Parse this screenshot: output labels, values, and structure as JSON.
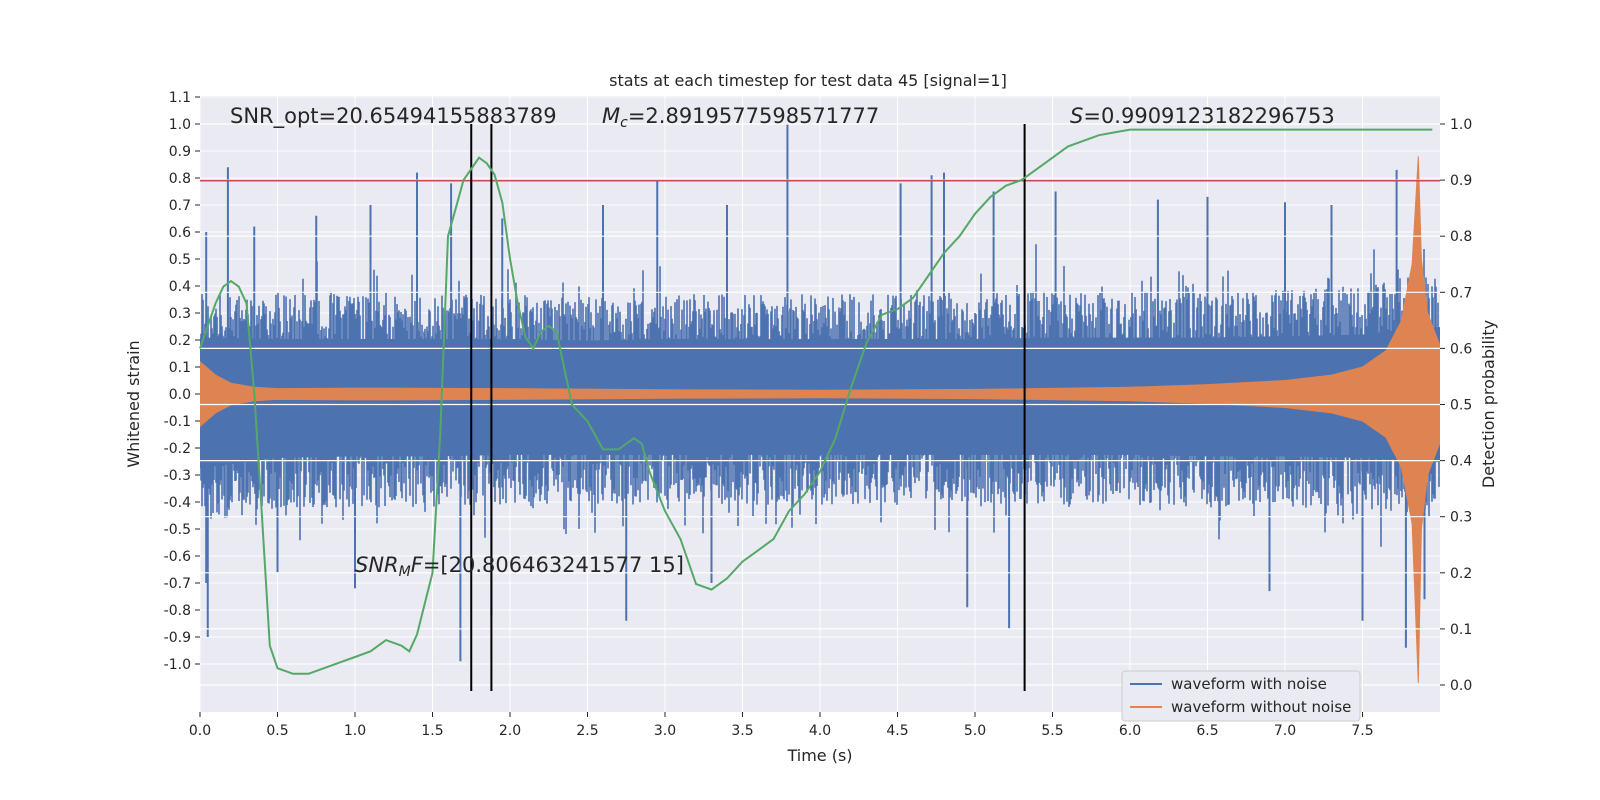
{
  "chart_data": {
    "type": "line",
    "title": "stats at each timestep for test data 45 [signal=1]",
    "xlabel": "Time (s)",
    "ylabel_left": "Whitened strain",
    "ylabel_right": "Detection probability",
    "xlim": [
      0.0,
      8.0
    ],
    "ylim_left": [
      -1.2,
      1.1
    ],
    "ylim_right": [
      0.0,
      1.0
    ],
    "grid": true,
    "x_ticks": [
      "0.0",
      "0.5",
      "1.0",
      "1.5",
      "2.0",
      "2.5",
      "3.0",
      "3.5",
      "4.0",
      "4.5",
      "5.0",
      "5.5",
      "6.0",
      "6.5",
      "7.0",
      "7.5"
    ],
    "y_left_ticks": [
      "1.1",
      "1.0",
      "0.9",
      "0.8",
      "0.7",
      "0.6",
      "0.5",
      "0.4",
      "0.3",
      "0.2",
      "0.1",
      "0.0",
      "-0.1",
      "-0.2",
      "-0.3",
      "-0.4",
      "-0.5",
      "-0.6",
      "-0.7",
      "-0.8",
      "-0.9",
      "-1.0"
    ],
    "y_right_ticks": [
      "1.0",
      "0.9",
      "0.8",
      "0.7",
      "0.6",
      "0.5",
      "0.4",
      "0.3",
      "0.2",
      "0.1",
      "0.0"
    ],
    "annotations": {
      "snr_opt": "SNR_opt=20.65494155883789",
      "mc_symbol": "M",
      "mc_sub": "c",
      "mc_value": "=2.8919577598571777",
      "s_symbol": "S",
      "s_value": "=0.9909123182296753",
      "snr_mf_symbol": "SNR",
      "snr_mf_sub": "M",
      "snr_mf_symbol2": "F",
      "snr_mf_value": "=[20.806463241577 15]"
    },
    "threshold_strain": 0.79,
    "vertical_lines_x": [
      1.75,
      1.88,
      5.32
    ],
    "vertical_lines_range_strain": [
      -1.1,
      1.0
    ],
    "series": [
      {
        "name": "waveform with noise",
        "color": "#4c72b0",
        "envelope_x": [
          0.0,
          0.5,
          1.0,
          1.5,
          2.0,
          2.5,
          3.0,
          3.5,
          4.0,
          4.5,
          5.0,
          5.5,
          6.0,
          6.5,
          7.0,
          7.5,
          7.8,
          8.0
        ],
        "envelope_upper": [
          0.38,
          0.37,
          0.37,
          0.37,
          0.37,
          0.36,
          0.37,
          0.37,
          0.37,
          0.37,
          0.37,
          0.38,
          0.38,
          0.38,
          0.39,
          0.4,
          0.44,
          0.45
        ],
        "envelope_lower": [
          -0.5,
          -0.43,
          -0.42,
          -0.42,
          -0.41,
          -0.41,
          -0.41,
          -0.41,
          -0.41,
          -0.41,
          -0.41,
          -0.41,
          -0.41,
          -0.42,
          -0.42,
          -0.43,
          -0.45,
          -0.46
        ],
        "spikes_up": [
          [
            0.04,
            0.6
          ],
          [
            0.18,
            0.84
          ],
          [
            0.35,
            0.62
          ],
          [
            0.75,
            0.66
          ],
          [
            1.1,
            0.7
          ],
          [
            1.4,
            0.82
          ],
          [
            1.62,
            0.78
          ],
          [
            1.75,
            0.8
          ],
          [
            1.95,
            0.65
          ],
          [
            2.6,
            0.7
          ],
          [
            2.95,
            0.79
          ],
          [
            3.4,
            0.7
          ],
          [
            3.79,
            1.0
          ],
          [
            4.52,
            0.78
          ],
          [
            4.72,
            0.81
          ],
          [
            4.8,
            0.82
          ],
          [
            5.12,
            0.75
          ],
          [
            5.52,
            0.75
          ],
          [
            6.18,
            0.72
          ],
          [
            6.5,
            0.73
          ],
          [
            7.0,
            0.71
          ],
          [
            7.3,
            0.7
          ],
          [
            7.72,
            0.83
          ]
        ],
        "spikes_down": [
          [
            0.04,
            -0.7
          ],
          [
            0.05,
            -0.9
          ],
          [
            0.5,
            -0.66
          ],
          [
            1.0,
            -0.72
          ],
          [
            1.68,
            -0.99
          ],
          [
            1.88,
            -0.82
          ],
          [
            2.75,
            -0.84
          ],
          [
            3.3,
            -0.7
          ],
          [
            4.95,
            -0.79
          ],
          [
            5.22,
            -0.87
          ],
          [
            6.9,
            -0.73
          ],
          [
            7.5,
            -0.84
          ],
          [
            7.78,
            -0.94
          ],
          [
            7.9,
            -0.76
          ]
        ]
      },
      {
        "name": "waveform without noise",
        "color": "#dd8452",
        "envelope_x": [
          0.0,
          0.1,
          0.2,
          0.35,
          0.5,
          1.0,
          2.0,
          3.0,
          4.0,
          5.0,
          6.0,
          6.5,
          7.0,
          7.3,
          7.5,
          7.65,
          7.75,
          7.82,
          7.86,
          7.88,
          7.92,
          8.0
        ],
        "envelope_upper": [
          0.12,
          0.07,
          0.04,
          0.025,
          0.02,
          0.022,
          0.02,
          0.016,
          0.014,
          0.017,
          0.025,
          0.035,
          0.05,
          0.07,
          0.1,
          0.16,
          0.27,
          0.48,
          0.88,
          0.5,
          0.3,
          0.18
        ],
        "envelope_lower": [
          -0.12,
          -0.07,
          -0.04,
          -0.025,
          -0.02,
          -0.022,
          -0.02,
          -0.016,
          -0.014,
          -0.017,
          -0.025,
          -0.035,
          -0.05,
          -0.07,
          -0.1,
          -0.16,
          -0.27,
          -0.48,
          -1.07,
          -0.5,
          -0.3,
          -0.18
        ]
      },
      {
        "name": "Detection probability",
        "color": "#55a868",
        "axis": "right",
        "x": [
          0.0,
          0.1,
          0.15,
          0.2,
          0.25,
          0.3,
          0.35,
          0.4,
          0.45,
          0.5,
          0.6,
          0.7,
          0.8,
          0.9,
          1.0,
          1.1,
          1.2,
          1.3,
          1.35,
          1.4,
          1.5,
          1.55,
          1.6,
          1.65,
          1.7,
          1.75,
          1.8,
          1.85,
          1.9,
          1.95,
          2.0,
          2.05,
          2.1,
          2.15,
          2.2,
          2.25,
          2.3,
          2.4,
          2.5,
          2.6,
          2.7,
          2.8,
          2.85,
          2.9,
          3.0,
          3.1,
          3.2,
          3.3,
          3.4,
          3.5,
          3.6,
          3.7,
          3.8,
          3.9,
          4.0,
          4.1,
          4.2,
          4.3,
          4.4,
          4.5,
          4.6,
          4.7,
          4.8,
          4.9,
          5.0,
          5.1,
          5.2,
          5.3,
          5.4,
          5.5,
          5.6,
          5.7,
          5.8,
          5.9,
          6.0,
          6.5,
          7.0,
          7.5,
          7.95
        ],
        "y": [
          0.6,
          0.68,
          0.71,
          0.72,
          0.71,
          0.68,
          0.52,
          0.3,
          0.07,
          0.03,
          0.02,
          0.02,
          0.03,
          0.04,
          0.05,
          0.06,
          0.08,
          0.07,
          0.06,
          0.09,
          0.2,
          0.45,
          0.8,
          0.85,
          0.9,
          0.92,
          0.94,
          0.93,
          0.91,
          0.86,
          0.76,
          0.68,
          0.62,
          0.6,
          0.63,
          0.64,
          0.63,
          0.5,
          0.47,
          0.42,
          0.42,
          0.44,
          0.43,
          0.38,
          0.31,
          0.26,
          0.18,
          0.17,
          0.19,
          0.22,
          0.24,
          0.26,
          0.31,
          0.34,
          0.38,
          0.44,
          0.53,
          0.61,
          0.66,
          0.67,
          0.69,
          0.73,
          0.77,
          0.8,
          0.84,
          0.87,
          0.89,
          0.9,
          0.92,
          0.94,
          0.96,
          0.97,
          0.98,
          0.985,
          0.99,
          0.99,
          0.99,
          0.99,
          0.99
        ]
      },
      {
        "name": "Threshold",
        "color": "#c44e52",
        "axis": "left",
        "y": 0.79
      }
    ],
    "legend": {
      "placement": "lower-right",
      "entries": [
        "waveform with noise",
        "waveform without noise"
      ]
    }
  }
}
